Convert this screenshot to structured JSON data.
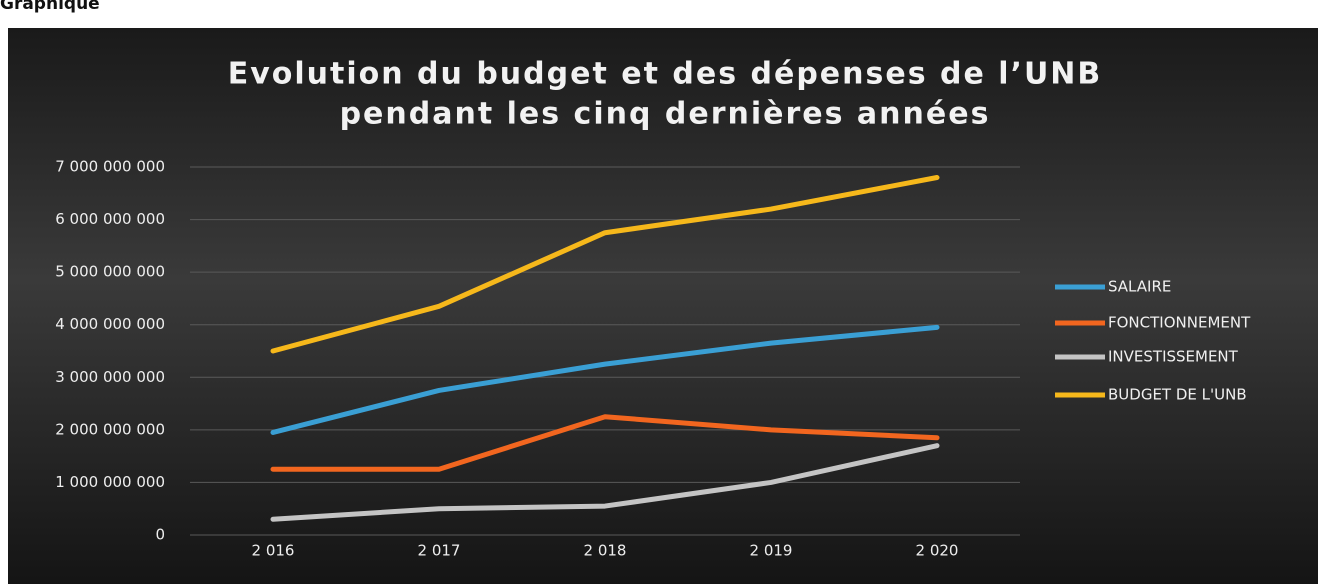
{
  "header": {
    "text": "Graphique"
  },
  "chart_data": {
    "type": "line",
    "title": [
      "Evolution du budget et des dépenses de l’UNB",
      "pendant les cinq dernières années"
    ],
    "categories": [
      "2 016",
      "2 017",
      "2 018",
      "2 019",
      "2 020"
    ],
    "series": [
      {
        "name": "SALAIRE",
        "color": "#3a9fd4",
        "values": [
          1950000000,
          2750000000,
          3250000000,
          3650000000,
          3950000000
        ]
      },
      {
        "name": "FONCTIONNEMENT",
        "color": "#f2661f",
        "values": [
          1250000000,
          1250000000,
          2250000000,
          2000000000,
          1850000000
        ]
      },
      {
        "name": "INVESTISSEMENT",
        "color": "#c4c4c4",
        "values": [
          300000000,
          500000000,
          550000000,
          1000000000,
          1700000000
        ]
      },
      {
        "name": "BUDGET DE L'UNB",
        "color": "#f6b81b",
        "values": [
          3500000000,
          4350000000,
          5750000000,
          6200000000,
          6800000000
        ]
      }
    ],
    "ylim": [
      0,
      7000000000
    ],
    "yticks": [
      0,
      {
        "value": 1000000000,
        "label": "1 000 000 000"
      },
      {
        "value": 2000000000,
        "label": "2 000 000 000"
      },
      {
        "value": 3000000000,
        "label": "3 000 000 000"
      },
      {
        "value": 4000000000,
        "label": "4 000 000 000"
      },
      {
        "value": 5000000000,
        "label": "5 000 000 000"
      },
      {
        "value": 6000000000,
        "label": "6 000 000 000"
      },
      {
        "value": 7000000000,
        "label": "7 000 000 000"
      }
    ],
    "grid": true,
    "legend": "right"
  }
}
